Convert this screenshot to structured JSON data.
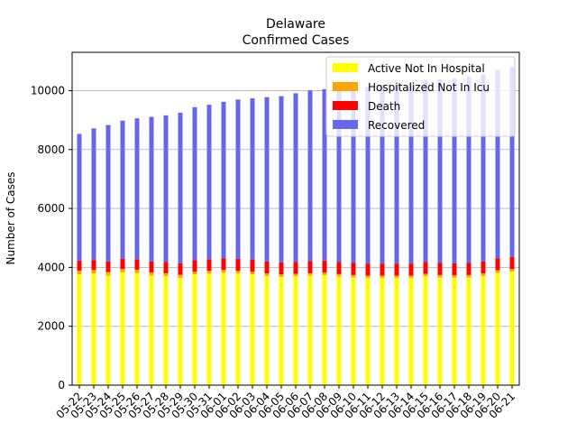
{
  "chart_data": {
    "type": "bar",
    "stacked": true,
    "title": "Delaware",
    "subtitle": "Confirmed Cases",
    "xlabel": "",
    "ylabel": "Number of Cases",
    "ylim": [
      0,
      11300
    ],
    "yticks": [
      0,
      2000,
      4000,
      6000,
      8000,
      10000
    ],
    "grid": "horizontal",
    "legend_position": "top-right",
    "categories": [
      "05-22",
      "05-23",
      "05-24",
      "05-25",
      "05-26",
      "05-27",
      "05-28",
      "05-29",
      "05-30",
      "05-31",
      "06-01",
      "06-02",
      "06-03",
      "06-04",
      "06-05",
      "06-06",
      "06-07",
      "06-08",
      "06-09",
      "06-10",
      "06-11",
      "06-12",
      "06-13",
      "06-14",
      "06-15",
      "06-16",
      "06-17",
      "06-18",
      "06-19",
      "06-20",
      "06-21"
    ],
    "series": [
      {
        "name": "Active Not In Hospital",
        "color": "#ffff00",
        "values": [
          3770,
          3800,
          3720,
          3830,
          3820,
          3720,
          3700,
          3650,
          3760,
          3790,
          3820,
          3800,
          3770,
          3710,
          3680,
          3700,
          3720,
          3740,
          3690,
          3660,
          3640,
          3640,
          3640,
          3640,
          3700,
          3660,
          3650,
          3660,
          3710,
          3820,
          3860
        ]
      },
      {
        "name": "Hospitalized Not In Icu",
        "color": "#ffa500",
        "values": [
          120,
          110,
          120,
          110,
          100,
          100,
          100,
          100,
          90,
          90,
          90,
          80,
          80,
          80,
          80,
          80,
          80,
          80,
          80,
          80,
          80,
          80,
          80,
          80,
          80,
          80,
          80,
          80,
          80,
          80,
          80
        ]
      },
      {
        "name": "Death",
        "color": "#ff0000",
        "values": [
          340,
          340,
          360,
          350,
          360,
          380,
          390,
          390,
          400,
          400,
          400,
          410,
          410,
          410,
          410,
          410,
          410,
          410,
          410,
          410,
          410,
          410,
          410,
          410,
          410,
          410,
          410,
          410,
          410,
          410,
          410
        ]
      },
      {
        "name": "Recovered",
        "color": "#6666ee",
        "values": [
          4300,
          4470,
          4630,
          4690,
          4780,
          4910,
          4970,
          5110,
          5190,
          5240,
          5310,
          5410,
          5480,
          5580,
          5640,
          5720,
          5800,
          5820,
          5890,
          5950,
          6000,
          6060,
          6100,
          6150,
          6170,
          6230,
          6280,
          6330,
          6360,
          6390,
          6450
        ]
      }
    ]
  }
}
